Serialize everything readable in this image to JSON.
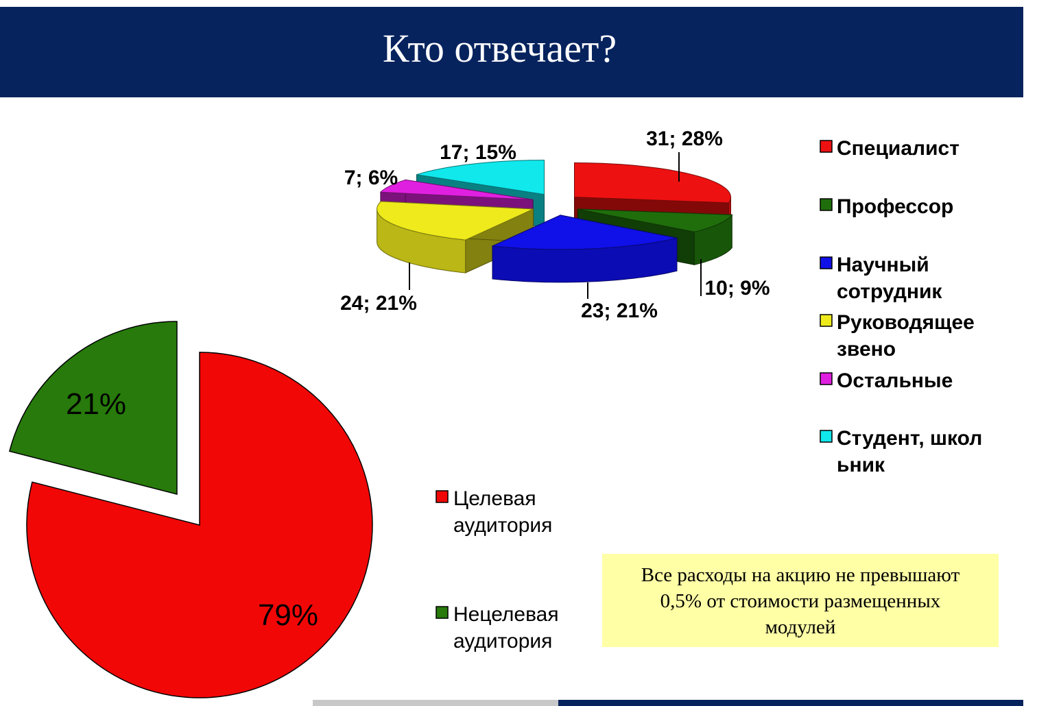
{
  "header": {
    "title": "Кто отвечает?"
  },
  "colors": {
    "header_bg": "#06235e",
    "note_bg": "#ffffa6"
  },
  "chart_data": [
    {
      "type": "pie",
      "style": "3d-exploded",
      "label_format": "value; percent",
      "categories": [
        "Специалист",
        "Профессор",
        "Научный сотрудник",
        "Руководящее звено",
        "Остальные",
        "Студент, школьник"
      ],
      "legend_lines": [
        [
          "Специалист"
        ],
        [
          "Профессор"
        ],
        [
          "Научный",
          "сотрудник"
        ],
        [
          "Руководящее",
          "звено"
        ],
        [
          "Остальные"
        ],
        [
          "Студент, школ",
          "ьник"
        ]
      ],
      "values": [
        31,
        10,
        23,
        24,
        7,
        17
      ],
      "percents": [
        28,
        9,
        21,
        21,
        6,
        15
      ],
      "labels": [
        "31; 28%",
        "10; 9%",
        "23; 21%",
        "24; 21%",
        "7; 6%",
        "17; 15%"
      ],
      "colors": [
        "#ee1111",
        "#1f6e0b",
        "#1010e8",
        "#eeea1c",
        "#e020e0",
        "#10e8ec"
      ],
      "legend_position": "right"
    },
    {
      "type": "pie",
      "style": "2d-exploded",
      "categories": [
        "Целевая аудитория",
        "Нецелевая аудитория"
      ],
      "legend_lines": [
        [
          "Целевая",
          "аудитория"
        ],
        [
          "Нецелевая",
          "аудитория"
        ]
      ],
      "values": [
        79,
        21
      ],
      "labels": [
        "79%",
        "21%"
      ],
      "colors": [
        "#f20707",
        "#277a0b"
      ],
      "legend_position": "right"
    }
  ],
  "note": {
    "lines": [
      "Все расходы на акцию не превышают",
      "0,5% от стоимости размещенных",
      "модулей"
    ]
  }
}
